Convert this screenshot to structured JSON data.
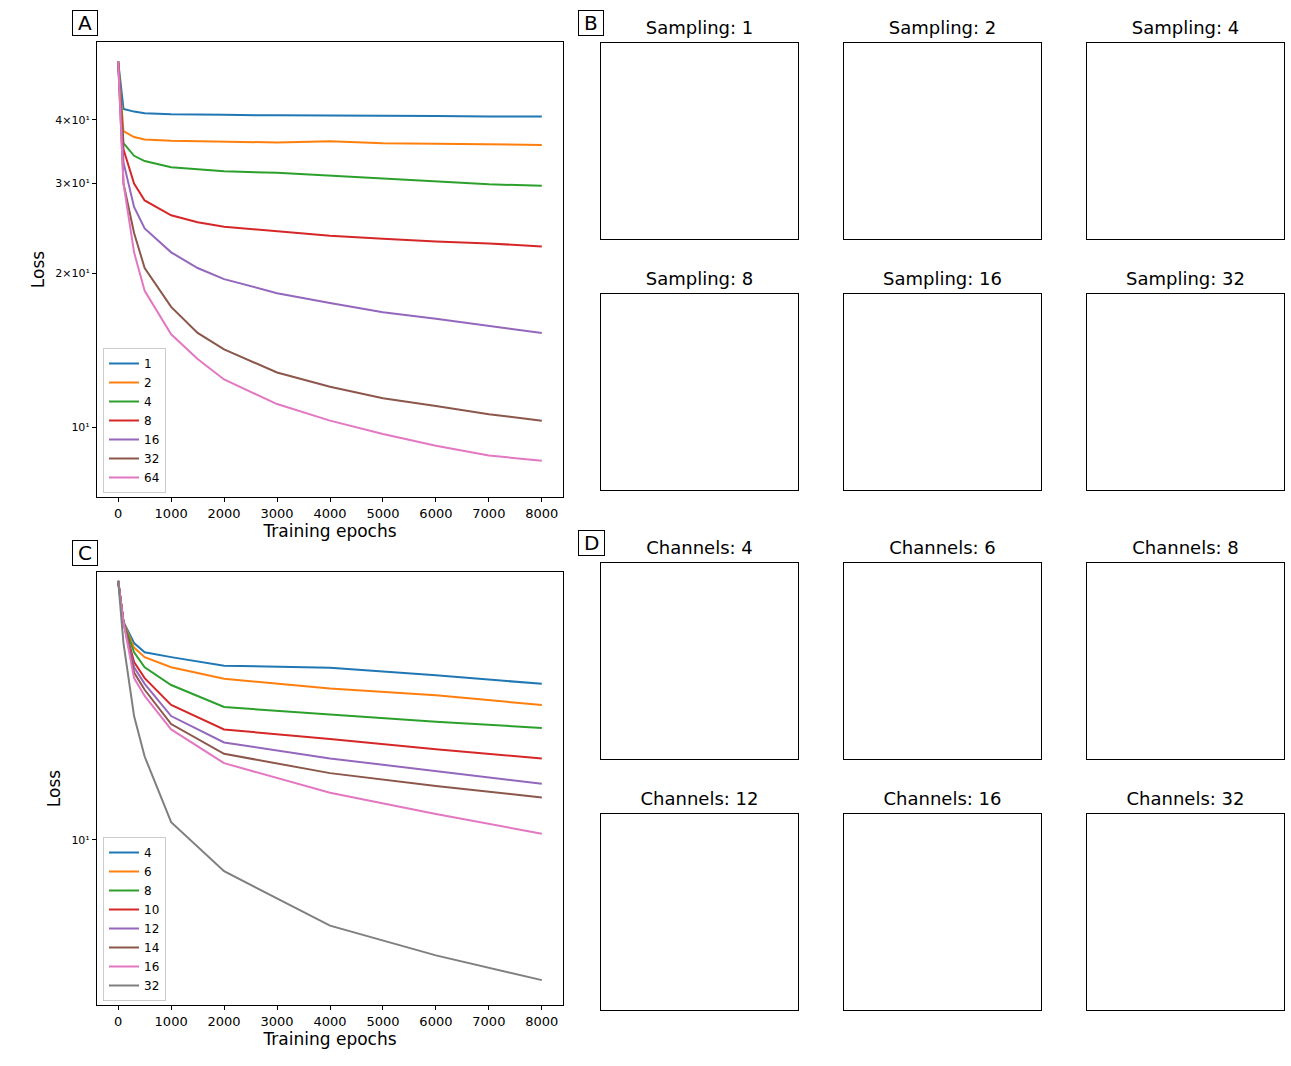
{
  "chart_data": [
    {
      "type": "line",
      "annotations": [
        "A"
      ],
      "x_label": "Training epochs",
      "y_label": "Loss",
      "log": "y",
      "grid": false,
      "legend": "lower left",
      "xlim": [
        -400,
        8400
      ],
      "xticks": [
        0,
        1000,
        2000,
        3000,
        4000,
        5000,
        6000,
        7000,
        8000
      ],
      "ylim": [
        7.3,
        56.8
      ],
      "yticks": [
        {
          "value": 10,
          "label": "10¹"
        },
        {
          "value": 20,
          "label": "2×10¹"
        },
        {
          "value": 30,
          "label": "3×10¹"
        },
        {
          "value": 40,
          "label": "4×10¹"
        }
      ],
      "x": [
        0,
        100,
        300,
        500,
        1000,
        1500,
        2000,
        3000,
        4000,
        5000,
        6000,
        7000,
        8000
      ],
      "series": [
        {
          "name": "1",
          "color": "#1f77b4",
          "values": [
            52,
            42,
            41.5,
            41.2,
            41,
            41,
            40.9,
            40.8,
            40.8,
            40.7,
            40.7,
            40.6,
            40.6
          ]
        },
        {
          "name": "2",
          "color": "#ff7f0e",
          "values": [
            52,
            38,
            37,
            36.6,
            36.4,
            36.3,
            36.2,
            36.1,
            36.3,
            36,
            35.9,
            35.8,
            35.7
          ]
        },
        {
          "name": "4",
          "color": "#2ca02c",
          "values": [
            52,
            36,
            34,
            33.2,
            32.3,
            32,
            31.7,
            31.5,
            31.1,
            30.7,
            30.3,
            29.9,
            29.7
          ]
        },
        {
          "name": "8",
          "color": "#d62728",
          "values": [
            52,
            35,
            30,
            27.8,
            26,
            25.2,
            24.7,
            24.2,
            23.7,
            23.4,
            23.1,
            22.9,
            22.6
          ]
        },
        {
          "name": "16",
          "color": "#9467bd",
          "values": [
            52,
            33,
            27,
            24.5,
            22,
            20.5,
            19.5,
            18.3,
            17.5,
            16.8,
            16.3,
            15.8,
            15.3
          ]
        },
        {
          "name": "32",
          "color": "#8c564b",
          "values": [
            52,
            30,
            24,
            20.5,
            17.2,
            15.3,
            14.2,
            12.8,
            12,
            11.4,
            11,
            10.6,
            10.3
          ]
        },
        {
          "name": "64",
          "color": "#e377c2",
          "values": [
            52,
            30,
            22,
            18.5,
            15.2,
            13.6,
            12.4,
            11.1,
            10.3,
            9.7,
            9.2,
            8.8,
            8.6
          ]
        }
      ]
    },
    {
      "type": "line",
      "annotations": [
        "C"
      ],
      "x_label": "Training epochs",
      "y_label": "Loss",
      "log": "y",
      "grid": false,
      "legend": "lower left",
      "xlim": [
        -400,
        8400
      ],
      "xticks": [
        0,
        1000,
        2000,
        3000,
        4000,
        5000,
        6000,
        7000,
        8000
      ],
      "ylim": [
        3.5,
        55
      ],
      "yticks": [
        {
          "value": 10,
          "label": "10¹"
        }
      ],
      "x": [
        0,
        100,
        300,
        500,
        1000,
        2000,
        4000,
        6000,
        8000
      ],
      "series": [
        {
          "name": "4",
          "color": "#1f77b4",
          "values": [
            52,
            40,
            35,
            33,
            32,
            30.3,
            29.9,
            28.5,
            27
          ]
        },
        {
          "name": "6",
          "color": "#ff7f0e",
          "values": [
            52,
            40,
            34,
            32,
            30,
            27.9,
            26.2,
            25.1,
            23.6
          ]
        },
        {
          "name": "8",
          "color": "#2ca02c",
          "values": [
            52,
            40,
            33,
            30,
            26.8,
            23.3,
            22.2,
            21.2,
            20.4
          ]
        },
        {
          "name": "10",
          "color": "#d62728",
          "values": [
            52,
            40,
            31,
            28,
            23.6,
            20.2,
            19,
            17.8,
            16.8
          ]
        },
        {
          "name": "12",
          "color": "#9467bd",
          "values": [
            52,
            40,
            30,
            27,
            22,
            18.6,
            16.8,
            15.5,
            14.3
          ]
        },
        {
          "name": "14",
          "color": "#8c564b",
          "values": [
            52,
            40,
            29,
            26,
            20.9,
            17.3,
            15.3,
            14.1,
            13.1
          ]
        },
        {
          "name": "16",
          "color": "#e377c2",
          "values": [
            52,
            40,
            28,
            25,
            20.2,
            16.3,
            13.5,
            11.8,
            10.4
          ]
        },
        {
          "name": "32",
          "color": "#7f7f7f",
          "values": [
            52,
            35,
            22,
            17,
            11.2,
            8.2,
            5.8,
            4.8,
            4.1
          ]
        }
      ]
    }
  ],
  "image_panels": [
    {
      "letter": "B",
      "titles": [
        "Sampling: 1",
        "Sampling: 2",
        "Sampling: 4",
        "Sampling: 8",
        "Sampling: 16",
        "Sampling: 32"
      ]
    },
    {
      "letter": "D",
      "titles": [
        "Channels: 4",
        "Channels: 6",
        "Channels: 8",
        "Channels: 12",
        "Channels: 16",
        "Channels: 32"
      ]
    }
  ]
}
